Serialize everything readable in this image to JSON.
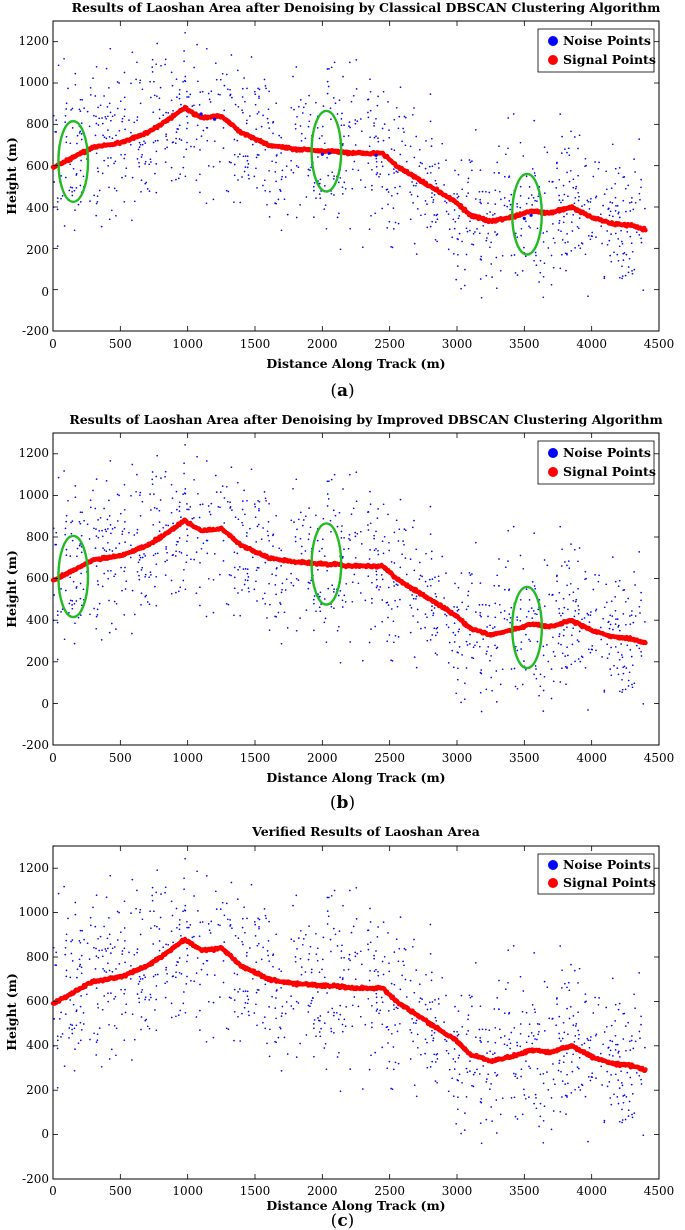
{
  "colors": {
    "noise": "#0000ff",
    "signal": "#ff0000",
    "annotation": "#22bb22"
  },
  "chart_data": [
    {
      "panel": "(a)",
      "caption_pre": "(",
      "caption_letter": "a",
      "caption_post": ")",
      "type": "scatter",
      "title": "Results of Laoshan Area after Denoising by Classical DBSCAN Clustering Algorithm",
      "xlabel": "Distance Along Track (m)",
      "ylabel": "Height (m)",
      "xlim": [
        0,
        4500
      ],
      "ylim": [
        -200,
        1300
      ],
      "xticks": [
        "0",
        "500",
        "1000",
        "1500",
        "2000",
        "2500",
        "3000",
        "3500",
        "4000",
        "4500"
      ],
      "yticks": [
        "-200",
        "0",
        "200",
        "400",
        "600",
        "800",
        "1000",
        "1200"
      ],
      "legend": {
        "position": "top-right",
        "noise_label": "Noise Points",
        "signal_label": "Signal Points"
      },
      "profile": [
        [
          0,
          590
        ],
        [
          150,
          640
        ],
        [
          300,
          690
        ],
        [
          500,
          710
        ],
        [
          700,
          760
        ],
        [
          850,
          820
        ],
        [
          980,
          880
        ],
        [
          1100,
          830
        ],
        [
          1250,
          840
        ],
        [
          1400,
          760
        ],
        [
          1600,
          700
        ],
        [
          1800,
          680
        ],
        [
          2000,
          670
        ],
        [
          2100,
          670
        ],
        [
          2200,
          660
        ],
        [
          2450,
          660
        ],
        [
          2550,
          600
        ],
        [
          2800,
          500
        ],
        [
          3000,
          420
        ],
        [
          3100,
          360
        ],
        [
          3250,
          330
        ],
        [
          3400,
          350
        ],
        [
          3550,
          380
        ],
        [
          3700,
          370
        ],
        [
          3850,
          400
        ],
        [
          4000,
          350
        ],
        [
          4150,
          320
        ],
        [
          4300,
          310
        ],
        [
          4400,
          290
        ]
      ],
      "annotations": [
        {
          "cx": 150,
          "cy": 620,
          "rx": 110,
          "ry": 195
        },
        {
          "cx": 2030,
          "cy": 670,
          "rx": 110,
          "ry": 195
        },
        {
          "cx": 3520,
          "cy": 365,
          "rx": 110,
          "ry": 195
        }
      ],
      "misclassified": [
        [
          2000,
          655
        ],
        [
          2050,
          660
        ],
        [
          3500,
          345
        ],
        [
          3550,
          360
        ],
        [
          1100,
          850
        ],
        [
          1200,
          825
        ],
        [
          2400,
          650
        ]
      ]
    },
    {
      "panel": "(b)",
      "caption_pre": "(",
      "caption_letter": "b",
      "caption_post": ")",
      "type": "scatter",
      "title": "Results of Laoshan Area after Denoising by Improved DBSCAN Clustering Algorithm",
      "xlabel": "Distance Along Track (m)",
      "ylabel": "Height (m)",
      "xlim": [
        0,
        4500
      ],
      "ylim": [
        -200,
        1300
      ],
      "xticks": [
        "0",
        "500",
        "1000",
        "1500",
        "2000",
        "2500",
        "3000",
        "3500",
        "4000",
        "4500"
      ],
      "yticks": [
        "-200",
        "0",
        "200",
        "400",
        "600",
        "800",
        "1000",
        "1200"
      ],
      "legend": {
        "position": "top-right",
        "noise_label": "Noise Points",
        "signal_label": "Signal Points"
      },
      "profile": [
        [
          0,
          590
        ],
        [
          150,
          640
        ],
        [
          300,
          690
        ],
        [
          500,
          710
        ],
        [
          700,
          760
        ],
        [
          850,
          820
        ],
        [
          980,
          880
        ],
        [
          1100,
          830
        ],
        [
          1250,
          840
        ],
        [
          1400,
          760
        ],
        [
          1600,
          700
        ],
        [
          1800,
          680
        ],
        [
          2000,
          670
        ],
        [
          2100,
          670
        ],
        [
          2200,
          660
        ],
        [
          2450,
          660
        ],
        [
          2550,
          600
        ],
        [
          2800,
          500
        ],
        [
          3000,
          420
        ],
        [
          3100,
          360
        ],
        [
          3250,
          330
        ],
        [
          3400,
          350
        ],
        [
          3550,
          380
        ],
        [
          3700,
          370
        ],
        [
          3850,
          400
        ],
        [
          4000,
          350
        ],
        [
          4150,
          320
        ],
        [
          4300,
          310
        ],
        [
          4400,
          290
        ]
      ],
      "annotations": [
        {
          "cx": 150,
          "cy": 610,
          "rx": 110,
          "ry": 195
        },
        {
          "cx": 2030,
          "cy": 670,
          "rx": 110,
          "ry": 195
        },
        {
          "cx": 3520,
          "cy": 365,
          "rx": 110,
          "ry": 195
        }
      ],
      "misclassified": []
    },
    {
      "panel": "(c)",
      "caption_pre": "(",
      "caption_letter": "c",
      "caption_post": ")",
      "type": "scatter",
      "title": "Verified Results of Laoshan Area",
      "xlabel": "Distance Along Track (m)",
      "ylabel": "Height (m)",
      "xlim": [
        0,
        4500
      ],
      "ylim": [
        -200,
        1300
      ],
      "xticks": [
        "0",
        "500",
        "1000",
        "1500",
        "2000",
        "2500",
        "3000",
        "3500",
        "4000",
        "4500"
      ],
      "yticks": [
        "-200",
        "0",
        "200",
        "400",
        "600",
        "800",
        "1000",
        "1200"
      ],
      "legend": {
        "position": "top-right",
        "noise_label": "Noise Points",
        "signal_label": "Signal Points"
      },
      "profile": [
        [
          0,
          590
        ],
        [
          150,
          640
        ],
        [
          300,
          690
        ],
        [
          500,
          710
        ],
        [
          700,
          760
        ],
        [
          850,
          820
        ],
        [
          980,
          880
        ],
        [
          1100,
          830
        ],
        [
          1250,
          840
        ],
        [
          1400,
          760
        ],
        [
          1600,
          700
        ],
        [
          1800,
          680
        ],
        [
          2000,
          670
        ],
        [
          2100,
          670
        ],
        [
          2200,
          660
        ],
        [
          2450,
          660
        ],
        [
          2550,
          600
        ],
        [
          2800,
          500
        ],
        [
          3000,
          420
        ],
        [
          3100,
          360
        ],
        [
          3250,
          330
        ],
        [
          3400,
          350
        ],
        [
          3550,
          380
        ],
        [
          3700,
          370
        ],
        [
          3850,
          400
        ],
        [
          4000,
          350
        ],
        [
          4150,
          320
        ],
        [
          4300,
          310
        ],
        [
          4400,
          290
        ]
      ],
      "annotations": [],
      "misclassified": []
    }
  ]
}
